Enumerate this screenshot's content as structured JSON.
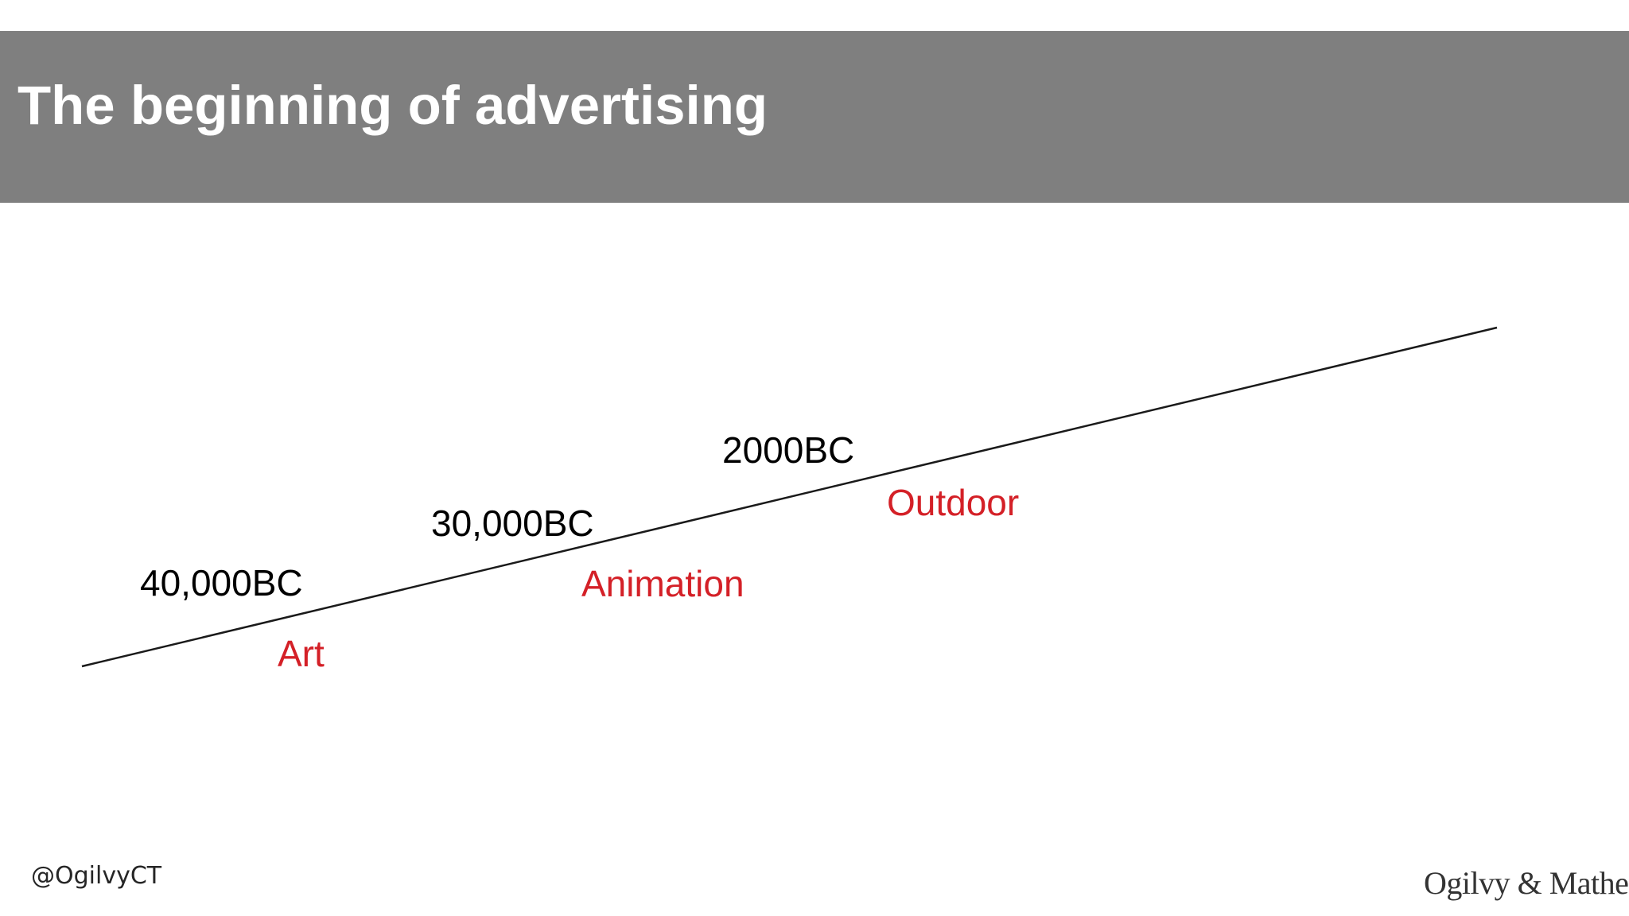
{
  "header": {
    "title": "The beginning of advertising",
    "bar_color": "#7f7f7f"
  },
  "timeline": {
    "milestones": [
      {
        "year": "40,000BC",
        "event": "Art"
      },
      {
        "year": "30,000BC",
        "event": "Animation"
      },
      {
        "year": "2000BC",
        "event": "Outdoor"
      }
    ],
    "event_color": "#d42027"
  },
  "footer": {
    "handle": "@OgilvyCT",
    "logo_text": "Ogilvy & Mather"
  }
}
